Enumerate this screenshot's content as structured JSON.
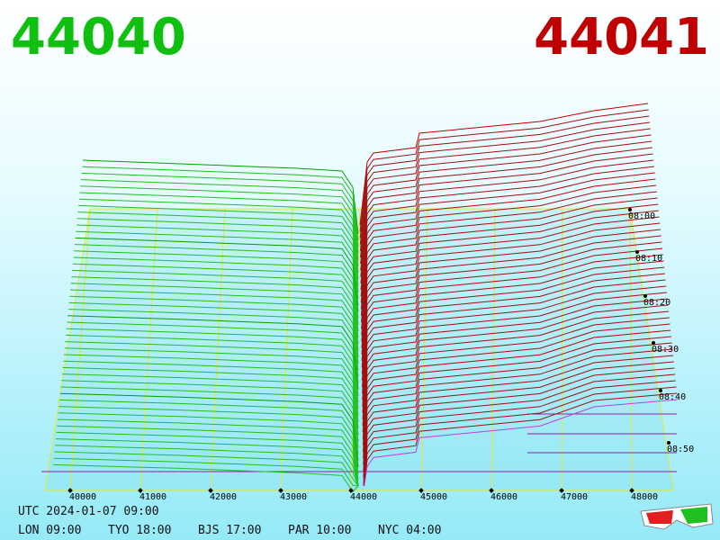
{
  "header": {
    "bid": "44040",
    "ask": "44041"
  },
  "price_axis": [
    "40000",
    "41000",
    "42000",
    "43000",
    "44000",
    "45000",
    "46000",
    "47000",
    "48000"
  ],
  "time_axis": [
    "08:00",
    "08:10",
    "08:20",
    "08:30",
    "08:40",
    "08:50"
  ],
  "footer": {
    "utc": "UTC 2024-01-07 09:00",
    "clocks": [
      "LON 09:00",
      "TYO 18:00",
      "BJS 17:00",
      "PAR 10:00",
      "NYC 04:00"
    ]
  }
}
